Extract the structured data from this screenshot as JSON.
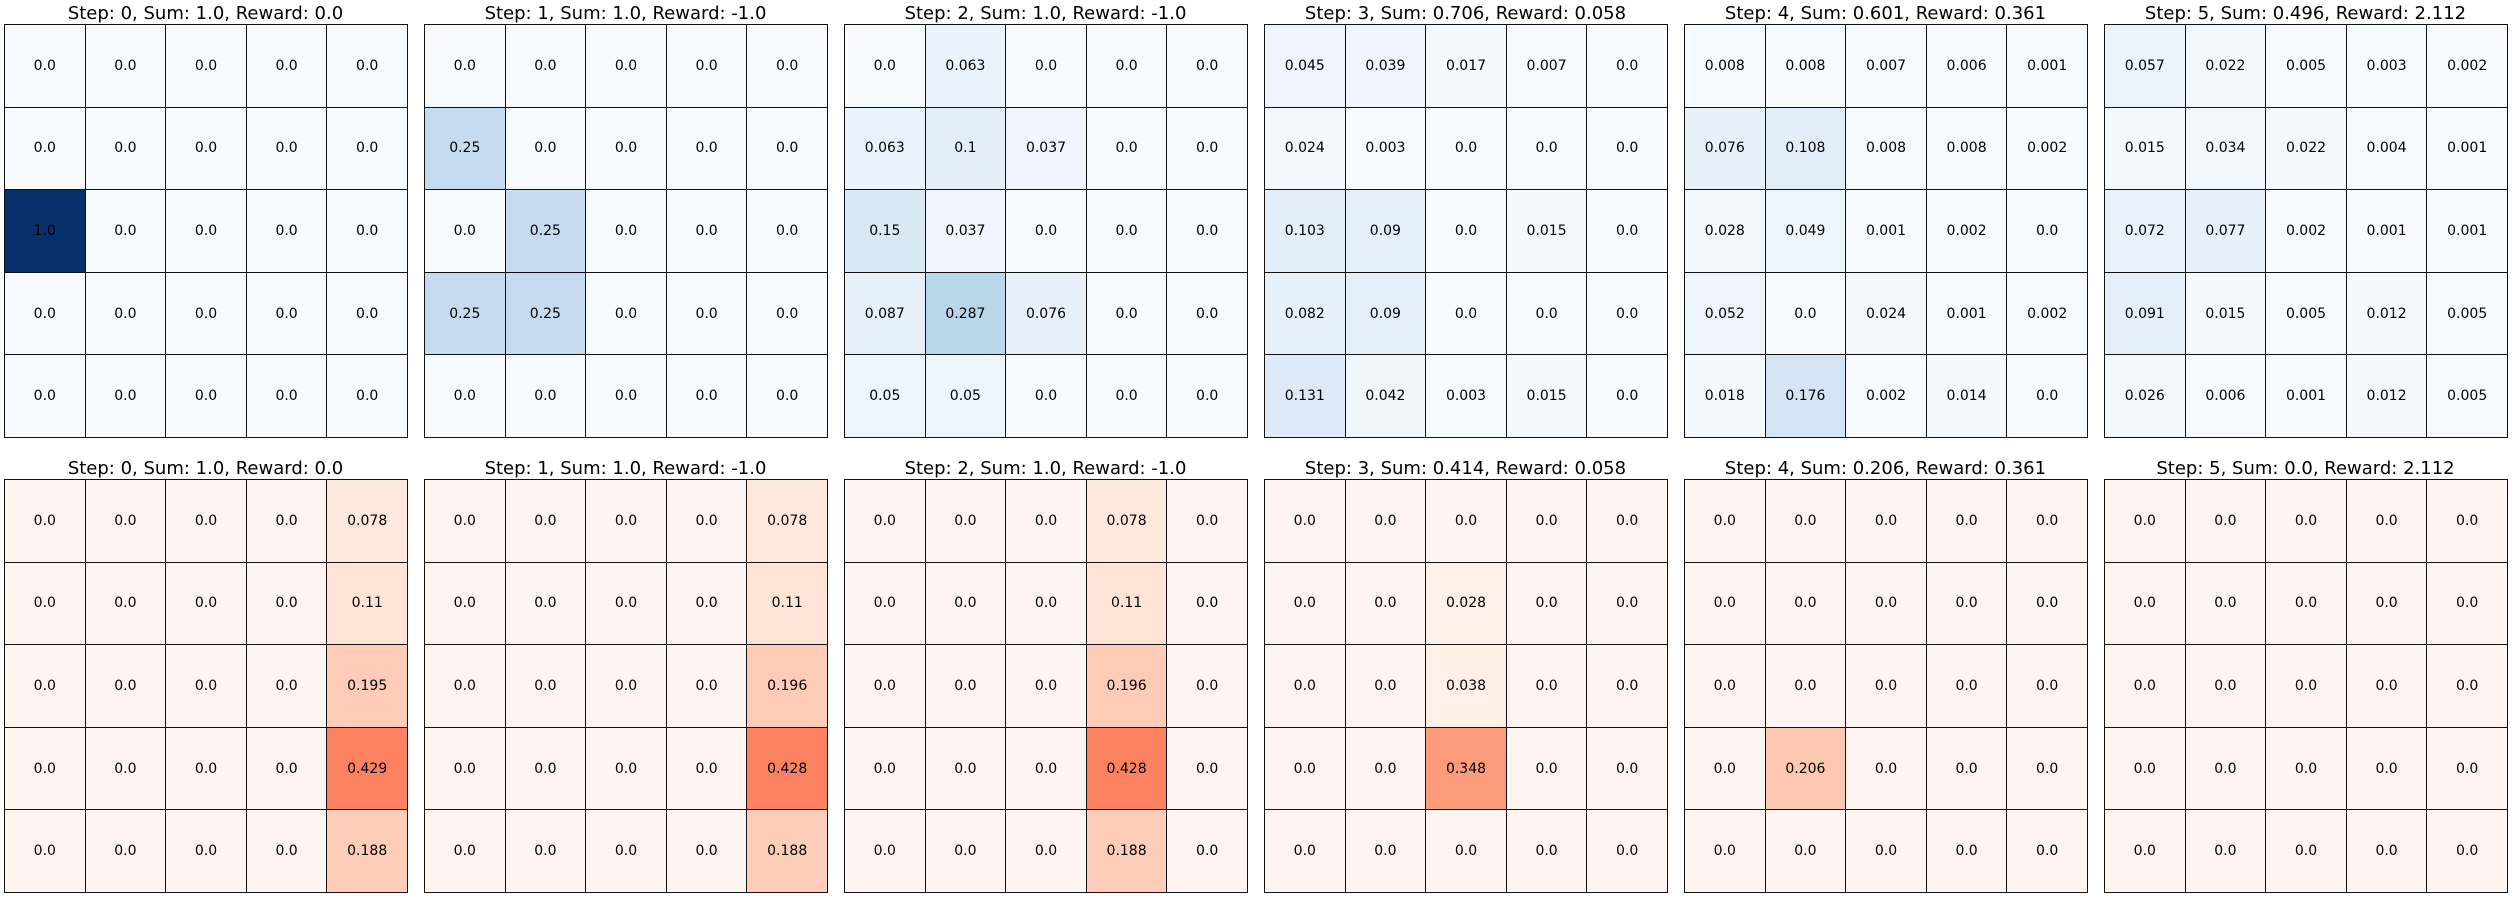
{
  "chart_data": [
    {
      "type": "heatmap",
      "row": "top",
      "palette": "blues",
      "title": "Step: 0, Sum: 1.0, Reward: 0.0",
      "values": [
        [
          "0.0",
          "0.0",
          "0.0",
          "0.0",
          "0.0"
        ],
        [
          "0.0",
          "0.0",
          "0.0",
          "0.0",
          "0.0"
        ],
        [
          "1.0",
          "0.0",
          "0.0",
          "0.0",
          "0.0"
        ],
        [
          "0.0",
          "0.0",
          "0.0",
          "0.0",
          "0.0"
        ],
        [
          "0.0",
          "0.0",
          "0.0",
          "0.0",
          "0.0"
        ]
      ]
    },
    {
      "type": "heatmap",
      "row": "top",
      "palette": "blues",
      "title": "Step: 1, Sum: 1.0, Reward: -1.0",
      "values": [
        [
          "0.0",
          "0.0",
          "0.0",
          "0.0",
          "0.0"
        ],
        [
          "0.25",
          "0.0",
          "0.0",
          "0.0",
          "0.0"
        ],
        [
          "0.0",
          "0.25",
          "0.0",
          "0.0",
          "0.0"
        ],
        [
          "0.25",
          "0.25",
          "0.0",
          "0.0",
          "0.0"
        ],
        [
          "0.0",
          "0.0",
          "0.0",
          "0.0",
          "0.0"
        ]
      ]
    },
    {
      "type": "heatmap",
      "row": "top",
      "palette": "blues",
      "title": "Step: 2, Sum: 1.0, Reward: -1.0",
      "values": [
        [
          "0.0",
          "0.063",
          "0.0",
          "0.0",
          "0.0"
        ],
        [
          "0.063",
          "0.1",
          "0.037",
          "0.0",
          "0.0"
        ],
        [
          "0.15",
          "0.037",
          "0.0",
          "0.0",
          "0.0"
        ],
        [
          "0.087",
          "0.287",
          "0.076",
          "0.0",
          "0.0"
        ],
        [
          "0.05",
          "0.05",
          "0.0",
          "0.0",
          "0.0"
        ]
      ]
    },
    {
      "type": "heatmap",
      "row": "top",
      "palette": "blues",
      "title": "Step: 3, Sum: 0.706, Reward: 0.058",
      "values": [
        [
          "0.045",
          "0.039",
          "0.017",
          "0.007",
          "0.0"
        ],
        [
          "0.024",
          "0.003",
          "0.0",
          "0.0",
          "0.0"
        ],
        [
          "0.103",
          "0.09",
          "0.0",
          "0.015",
          "0.0"
        ],
        [
          "0.082",
          "0.09",
          "0.0",
          "0.0",
          "0.0"
        ],
        [
          "0.131",
          "0.042",
          "0.003",
          "0.015",
          "0.0"
        ]
      ]
    },
    {
      "type": "heatmap",
      "row": "top",
      "palette": "blues",
      "title": "Step: 4, Sum: 0.601, Reward: 0.361",
      "values": [
        [
          "0.008",
          "0.008",
          "0.007",
          "0.006",
          "0.001"
        ],
        [
          "0.076",
          "0.108",
          "0.008",
          "0.008",
          "0.002"
        ],
        [
          "0.028",
          "0.049",
          "0.001",
          "0.002",
          "0.0"
        ],
        [
          "0.052",
          "0.0",
          "0.024",
          "0.001",
          "0.002"
        ],
        [
          "0.018",
          "0.176",
          "0.002",
          "0.014",
          "0.0"
        ]
      ]
    },
    {
      "type": "heatmap",
      "row": "top",
      "palette": "blues",
      "title": "Step: 5, Sum: 0.496, Reward: 2.112",
      "values": [
        [
          "0.057",
          "0.022",
          "0.005",
          "0.003",
          "0.002"
        ],
        [
          "0.015",
          "0.034",
          "0.022",
          "0.004",
          "0.001"
        ],
        [
          "0.072",
          "0.077",
          "0.002",
          "0.001",
          "0.001"
        ],
        [
          "0.091",
          "0.015",
          "0.005",
          "0.012",
          "0.005"
        ],
        [
          "0.026",
          "0.006",
          "0.001",
          "0.012",
          "0.005"
        ]
      ]
    },
    {
      "type": "heatmap",
      "row": "bottom",
      "palette": "reds",
      "title": "Step: 0, Sum: 1.0, Reward: 0.0",
      "values": [
        [
          "0.0",
          "0.0",
          "0.0",
          "0.0",
          "0.078"
        ],
        [
          "0.0",
          "0.0",
          "0.0",
          "0.0",
          "0.11"
        ],
        [
          "0.0",
          "0.0",
          "0.0",
          "0.0",
          "0.195"
        ],
        [
          "0.0",
          "0.0",
          "0.0",
          "0.0",
          "0.429"
        ],
        [
          "0.0",
          "0.0",
          "0.0",
          "0.0",
          "0.188"
        ]
      ]
    },
    {
      "type": "heatmap",
      "row": "bottom",
      "palette": "reds",
      "title": "Step: 1, Sum: 1.0, Reward: -1.0",
      "values": [
        [
          "0.0",
          "0.0",
          "0.0",
          "0.0",
          "0.078"
        ],
        [
          "0.0",
          "0.0",
          "0.0",
          "0.0",
          "0.11"
        ],
        [
          "0.0",
          "0.0",
          "0.0",
          "0.0",
          "0.196"
        ],
        [
          "0.0",
          "0.0",
          "0.0",
          "0.0",
          "0.428"
        ],
        [
          "0.0",
          "0.0",
          "0.0",
          "0.0",
          "0.188"
        ]
      ]
    },
    {
      "type": "heatmap",
      "row": "bottom",
      "palette": "reds",
      "title": "Step: 2, Sum: 1.0, Reward: -1.0",
      "values": [
        [
          "0.0",
          "0.0",
          "0.0",
          "0.078",
          "0.0"
        ],
        [
          "0.0",
          "0.0",
          "0.0",
          "0.11",
          "0.0"
        ],
        [
          "0.0",
          "0.0",
          "0.0",
          "0.196",
          "0.0"
        ],
        [
          "0.0",
          "0.0",
          "0.0",
          "0.428",
          "0.0"
        ],
        [
          "0.0",
          "0.0",
          "0.0",
          "0.188",
          "0.0"
        ]
      ]
    },
    {
      "type": "heatmap",
      "row": "bottom",
      "palette": "reds",
      "title": "Step: 3, Sum: 0.414, Reward: 0.058",
      "values": [
        [
          "0.0",
          "0.0",
          "0.0",
          "0.0",
          "0.0"
        ],
        [
          "0.0",
          "0.0",
          "0.028",
          "0.0",
          "0.0"
        ],
        [
          "0.0",
          "0.0",
          "0.038",
          "0.0",
          "0.0"
        ],
        [
          "0.0",
          "0.0",
          "0.348",
          "0.0",
          "0.0"
        ],
        [
          "0.0",
          "0.0",
          "0.0",
          "0.0",
          "0.0"
        ]
      ]
    },
    {
      "type": "heatmap",
      "row": "bottom",
      "palette": "reds",
      "title": "Step: 4, Sum: 0.206, Reward: 0.361",
      "values": [
        [
          "0.0",
          "0.0",
          "0.0",
          "0.0",
          "0.0"
        ],
        [
          "0.0",
          "0.0",
          "0.0",
          "0.0",
          "0.0"
        ],
        [
          "0.0",
          "0.0",
          "0.0",
          "0.0",
          "0.0"
        ],
        [
          "0.0",
          "0.206",
          "0.0",
          "0.0",
          "0.0"
        ],
        [
          "0.0",
          "0.0",
          "0.0",
          "0.0",
          "0.0"
        ]
      ]
    },
    {
      "type": "heatmap",
      "row": "bottom",
      "palette": "reds",
      "title": "Step: 5, Sum: 0.0, Reward: 2.112",
      "values": [
        [
          "0.0",
          "0.0",
          "0.0",
          "0.0",
          "0.0"
        ],
        [
          "0.0",
          "0.0",
          "0.0",
          "0.0",
          "0.0"
        ],
        [
          "0.0",
          "0.0",
          "0.0",
          "0.0",
          "0.0"
        ],
        [
          "0.0",
          "0.0",
          "0.0",
          "0.0",
          "0.0"
        ],
        [
          "0.0",
          "0.0",
          "0.0",
          "0.0",
          "0.0"
        ]
      ]
    }
  ],
  "colors": {
    "blues_low": "#f7fbff",
    "blues_high": "#08306b",
    "reds_low": "#fff5f0",
    "reds_high": "#67000d",
    "gridline": "#111111"
  }
}
